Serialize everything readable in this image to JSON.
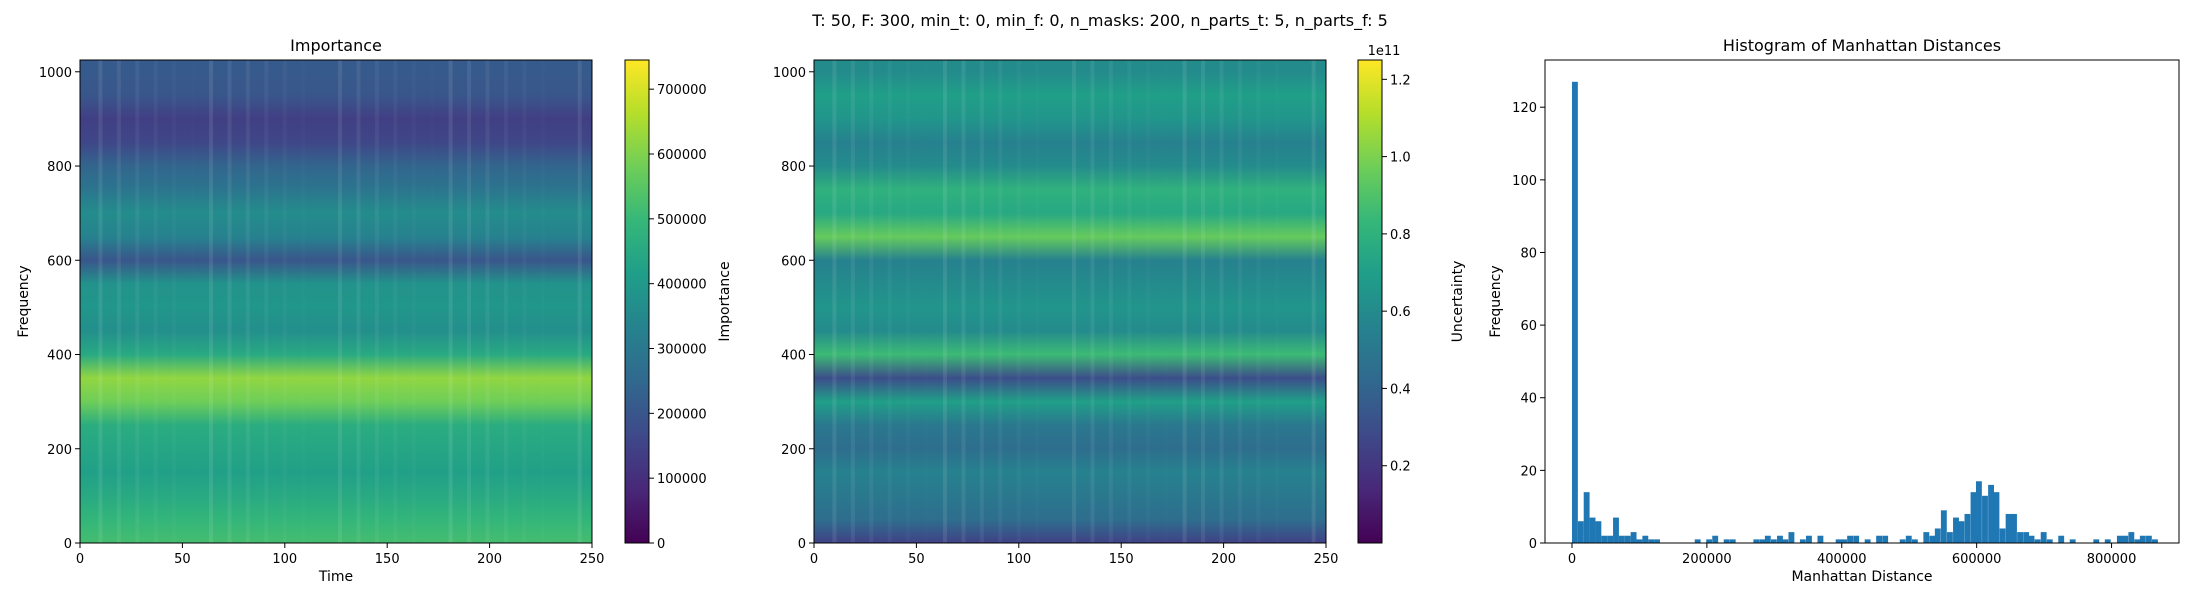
{
  "suptitle": "T: 50, F: 300, min_t: 0, min_f: 0, n_masks: 200, n_parts_t: 5, n_parts_f: 5",
  "colors": {
    "bar": "#1f77b4",
    "viridis": [
      "#440154",
      "#482878",
      "#3e4989",
      "#31688e",
      "#26828e",
      "#1f9e89",
      "#35b779",
      "#6ece58",
      "#b5de2b",
      "#fde725"
    ]
  },
  "chart_data": [
    {
      "type": "heatmap",
      "title": "Importance",
      "xlabel": "Time",
      "ylabel": "Frequency",
      "xlim": [
        0,
        250
      ],
      "ylim": [
        0,
        1025
      ],
      "xticks": [
        0,
        50,
        100,
        150,
        200,
        250
      ],
      "yticks": [
        0,
        200,
        400,
        600,
        800,
        1000
      ],
      "colormap": "viridis",
      "colorbar": {
        "label": "Importance",
        "range": [
          0,
          745000
        ],
        "ticks": [
          0,
          100000,
          200000,
          300000,
          400000,
          500000,
          600000,
          700000
        ],
        "tick_labels": [
          "0",
          "100000",
          "200000",
          "300000",
          "400000",
          "500000",
          "600000",
          "700000"
        ],
        "offset_label": ""
      },
      "frequency_bins": [
        0,
        50,
        100,
        150,
        200,
        250,
        300,
        350,
        400,
        450,
        500,
        550,
        600,
        650,
        700,
        750,
        800,
        850,
        900,
        950,
        1000
      ],
      "row_values": [
        520000,
        490000,
        450000,
        420000,
        440000,
        460000,
        580000,
        620000,
        450000,
        370000,
        390000,
        380000,
        200000,
        330000,
        360000,
        290000,
        240000,
        160000,
        140000,
        200000,
        210000
      ]
    },
    {
      "type": "heatmap",
      "title": "",
      "xlabel": "",
      "ylabel": "",
      "xlim": [
        0,
        250
      ],
      "ylim": [
        0,
        1025
      ],
      "xticks": [
        0,
        50,
        100,
        150,
        200,
        250
      ],
      "yticks": [
        0,
        200,
        400,
        600,
        800,
        1000
      ],
      "colormap": "viridis",
      "colorbar": {
        "label": "Uncertainty",
        "range": [
          0.0,
          1.25
        ],
        "ticks": [
          0.2,
          0.4,
          0.6,
          0.8,
          1.0,
          1.2
        ],
        "tick_labels": [
          "0.2",
          "0.4",
          "0.6",
          "0.8",
          "1.0",
          "1.2"
        ],
        "offset_label": "1e11"
      },
      "frequency_bins": [
        0,
        50,
        100,
        150,
        200,
        250,
        300,
        350,
        400,
        450,
        500,
        550,
        600,
        650,
        700,
        750,
        800,
        850,
        900,
        950,
        1000
      ],
      "row_values": [
        0.25,
        0.45,
        0.5,
        0.55,
        0.45,
        0.5,
        0.7,
        0.3,
        0.85,
        0.6,
        0.65,
        0.6,
        0.55,
        0.95,
        0.75,
        0.8,
        0.6,
        0.55,
        0.65,
        0.7,
        0.6
      ]
    },
    {
      "type": "bar",
      "title": "Histogram of Manhattan Distances",
      "xlabel": "Manhattan Distance",
      "ylabel": "Frequency",
      "xlim": [
        -40000,
        900000
      ],
      "ylim": [
        0,
        133
      ],
      "xticks": [
        0,
        200000,
        400000,
        600000,
        800000
      ],
      "xtick_labels": [
        "0",
        "200000",
        "400000",
        "600000",
        "800000"
      ],
      "yticks": [
        0,
        20,
        40,
        60,
        80,
        100,
        120
      ],
      "bin_width": 8700,
      "bins": [
        {
          "x": 0,
          "y": 127
        },
        {
          "x": 8700,
          "y": 6
        },
        {
          "x": 17400,
          "y": 14
        },
        {
          "x": 26100,
          "y": 7
        },
        {
          "x": 34800,
          "y": 6
        },
        {
          "x": 43500,
          "y": 2
        },
        {
          "x": 52200,
          "y": 2
        },
        {
          "x": 60900,
          "y": 7
        },
        {
          "x": 69600,
          "y": 2
        },
        {
          "x": 78300,
          "y": 2
        },
        {
          "x": 87000,
          "y": 3
        },
        {
          "x": 95700,
          "y": 1
        },
        {
          "x": 104400,
          "y": 2
        },
        {
          "x": 113100,
          "y": 1
        },
        {
          "x": 121800,
          "y": 1
        },
        {
          "x": 182000,
          "y": 1
        },
        {
          "x": 199000,
          "y": 1
        },
        {
          "x": 208000,
          "y": 2
        },
        {
          "x": 225000,
          "y": 1
        },
        {
          "x": 234000,
          "y": 1
        },
        {
          "x": 269000,
          "y": 1
        },
        {
          "x": 278000,
          "y": 1
        },
        {
          "x": 286000,
          "y": 2
        },
        {
          "x": 295000,
          "y": 1
        },
        {
          "x": 304000,
          "y": 2
        },
        {
          "x": 312000,
          "y": 1
        },
        {
          "x": 321000,
          "y": 3
        },
        {
          "x": 338000,
          "y": 1
        },
        {
          "x": 347000,
          "y": 2
        },
        {
          "x": 364000,
          "y": 2
        },
        {
          "x": 391000,
          "y": 1
        },
        {
          "x": 399000,
          "y": 1
        },
        {
          "x": 408000,
          "y": 2
        },
        {
          "x": 417000,
          "y": 2
        },
        {
          "x": 434000,
          "y": 1
        },
        {
          "x": 451000,
          "y": 2
        },
        {
          "x": 460000,
          "y": 2
        },
        {
          "x": 486000,
          "y": 1
        },
        {
          "x": 495000,
          "y": 2
        },
        {
          "x": 504000,
          "y": 1
        },
        {
          "x": 521000,
          "y": 3
        },
        {
          "x": 530000,
          "y": 2
        },
        {
          "x": 538000,
          "y": 4
        },
        {
          "x": 547000,
          "y": 9
        },
        {
          "x": 556000,
          "y": 3
        },
        {
          "x": 565000,
          "y": 7
        },
        {
          "x": 573000,
          "y": 6
        },
        {
          "x": 582000,
          "y": 8
        },
        {
          "x": 591000,
          "y": 14
        },
        {
          "x": 599000,
          "y": 17
        },
        {
          "x": 608000,
          "y": 13
        },
        {
          "x": 617000,
          "y": 16
        },
        {
          "x": 625000,
          "y": 14
        },
        {
          "x": 634000,
          "y": 4
        },
        {
          "x": 643000,
          "y": 8
        },
        {
          "x": 651000,
          "y": 8
        },
        {
          "x": 660000,
          "y": 3
        },
        {
          "x": 669000,
          "y": 3
        },
        {
          "x": 677000,
          "y": 2
        },
        {
          "x": 686000,
          "y": 1
        },
        {
          "x": 695000,
          "y": 3
        },
        {
          "x": 704000,
          "y": 1
        },
        {
          "x": 721000,
          "y": 2
        },
        {
          "x": 738000,
          "y": 1
        },
        {
          "x": 773000,
          "y": 1
        },
        {
          "x": 790000,
          "y": 1
        },
        {
          "x": 808000,
          "y": 2
        },
        {
          "x": 816000,
          "y": 2
        },
        {
          "x": 825000,
          "y": 3
        },
        {
          "x": 834000,
          "y": 1
        },
        {
          "x": 842000,
          "y": 2
        },
        {
          "x": 851000,
          "y": 2
        },
        {
          "x": 860000,
          "y": 1
        }
      ]
    }
  ]
}
